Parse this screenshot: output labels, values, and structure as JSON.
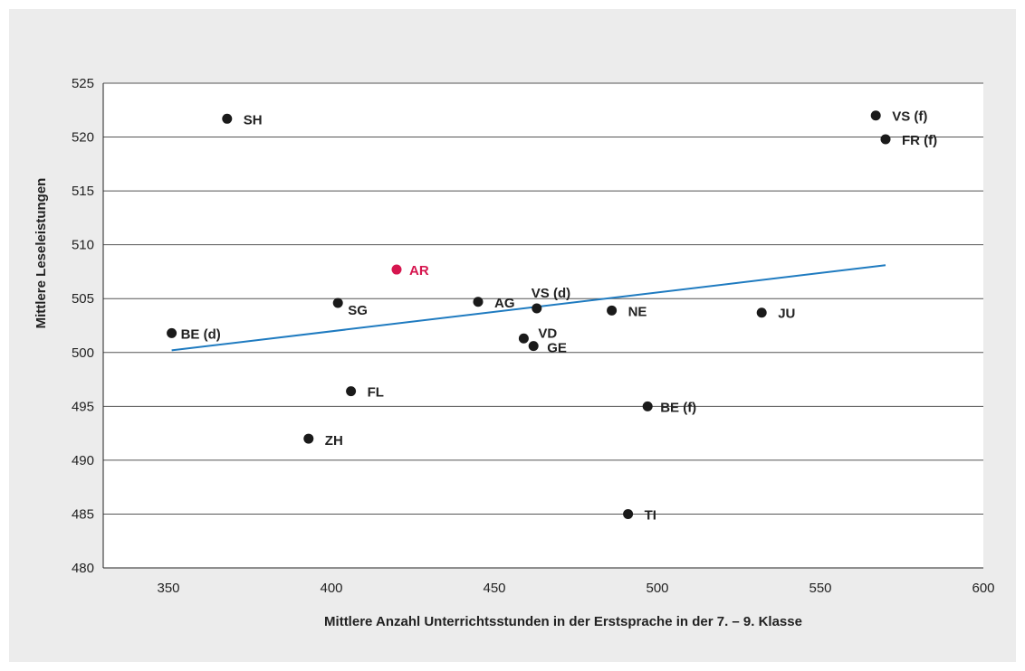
{
  "chart_data": {
    "type": "scatter",
    "xlabel": "Mittlere Anzahl Unterrichtsstunden in der Erstsprache in der 7. – 9. Klasse",
    "ylabel": "Mittlere Leseleistungen",
    "xlim": [
      330,
      600
    ],
    "ylim": [
      480,
      525
    ],
    "xticks": [
      350,
      400,
      450,
      500,
      550,
      600
    ],
    "yticks": [
      480,
      485,
      490,
      495,
      500,
      505,
      510,
      515,
      520,
      525
    ],
    "grid": "horizontal",
    "points": [
      {
        "label": "SH",
        "x": 368,
        "y": 521.7
      },
      {
        "label": "VS (f)",
        "x": 567,
        "y": 522.0
      },
      {
        "label": "FR (f)",
        "x": 570,
        "y": 519.8
      },
      {
        "label": "AR",
        "x": 420,
        "y": 507.7,
        "highlight": true
      },
      {
        "label": "SG",
        "x": 402,
        "y": 504.6
      },
      {
        "label": "AG",
        "x": 445,
        "y": 504.7
      },
      {
        "label": "VS (d)",
        "x": 463,
        "y": 504.1
      },
      {
        "label": "NE",
        "x": 486,
        "y": 503.9
      },
      {
        "label": "JU",
        "x": 532,
        "y": 503.7
      },
      {
        "label": "BE (d)",
        "x": 351,
        "y": 501.8
      },
      {
        "label": "VD",
        "x": 459,
        "y": 501.3
      },
      {
        "label": "GE",
        "x": 462,
        "y": 500.6
      },
      {
        "label": "FL",
        "x": 406,
        "y": 496.4
      },
      {
        "label": "BE (f)",
        "x": 497,
        "y": 495.0
      },
      {
        "label": "ZH",
        "x": 393,
        "y": 492.0
      },
      {
        "label": "TI",
        "x": 491,
        "y": 485.0
      }
    ],
    "trendline": {
      "x": [
        351,
        570
      ],
      "y": [
        500.2,
        508.1
      ]
    },
    "colors": {
      "point": "#1a1a1a",
      "highlight": "#d6164f",
      "trendline": "#1f7bc0",
      "grid": "#555555"
    }
  }
}
